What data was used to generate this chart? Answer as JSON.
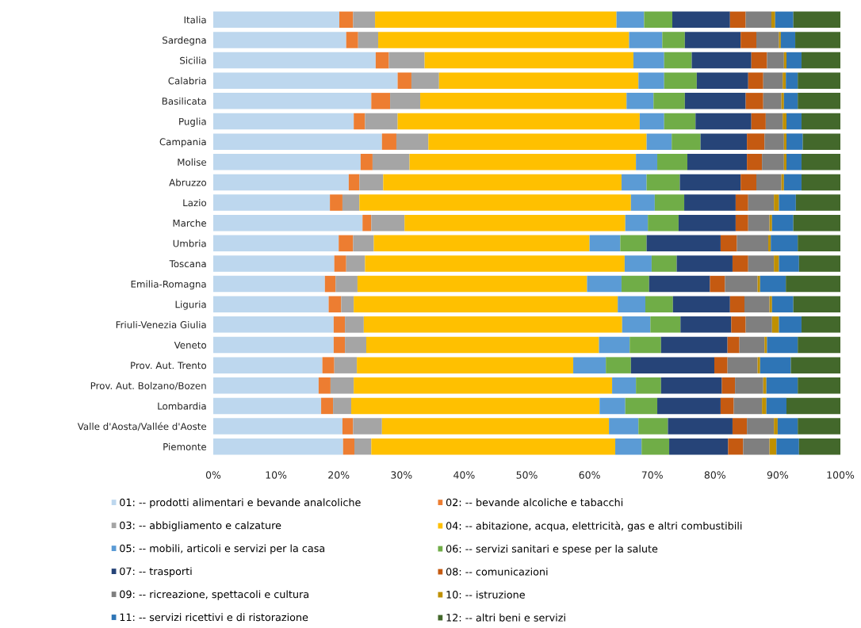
{
  "chart_data": {
    "type": "bar",
    "orientation": "horizontal",
    "stacked": true,
    "categories": [
      "Italia",
      "Sardegna",
      "Sicilia",
      "Calabria",
      "Basilicata",
      "Puglia",
      "Campania",
      "Molise",
      "Abruzzo",
      "Lazio",
      "Marche",
      "Umbria",
      "Toscana",
      "Emilia-Romagna",
      "Liguria",
      "Friuli-Venezia Giulia",
      "Veneto",
      "Prov. Aut. Trento",
      "Prov. Aut. Bolzano/Bozen",
      "Lombardia",
      "Valle d'Aosta/Vallée d'Aoste",
      "Piemonte"
    ],
    "series": [
      {
        "name": "01: -- prodotti alimentari e bevande analcoliche",
        "color": "#bdd7ee",
        "values": [
          20.1,
          21.2,
          25.9,
          29.4,
          25.2,
          22.4,
          26.9,
          23.5,
          21.6,
          18.6,
          23.8,
          20.0,
          19.3,
          17.8,
          18.4,
          19.2,
          19.2,
          17.4,
          16.8,
          17.2,
          20.6,
          20.7
        ]
      },
      {
        "name": "02: -- bevande alcoliche e tabacchi",
        "color": "#ed7d31",
        "values": [
          2.2,
          1.9,
          2.1,
          2.2,
          3.0,
          1.8,
          2.3,
          1.9,
          1.7,
          2.0,
          1.4,
          2.3,
          1.9,
          1.7,
          2.0,
          1.8,
          1.8,
          1.9,
          1.9,
          1.9,
          1.7,
          1.8
        ]
      },
      {
        "name": "03: -- abbigliamento e calzature",
        "color": "#a5a5a5",
        "values": [
          3.5,
          3.2,
          5.7,
          4.4,
          4.8,
          5.2,
          5.1,
          5.9,
          3.8,
          2.7,
          5.3,
          3.3,
          3.0,
          3.5,
          2.0,
          3.0,
          3.4,
          3.6,
          3.7,
          2.9,
          4.6,
          2.7
        ]
      },
      {
        "name": "04: -- abitazione, acqua, elettricità, gas e altri combustibili",
        "color": "#ffc000",
        "values": [
          38.5,
          40.0,
          33.3,
          31.8,
          32.9,
          38.6,
          34.8,
          36.1,
          38.0,
          43.3,
          35.2,
          34.4,
          41.4,
          36.6,
          42.1,
          41.2,
          37.1,
          34.5,
          41.2,
          39.6,
          36.2,
          38.9
        ]
      },
      {
        "name": "05: -- mobili, articoli e servizi per la casa",
        "color": "#5b9bd5",
        "values": [
          4.4,
          5.3,
          4.9,
          4.1,
          4.3,
          3.9,
          4.0,
          3.4,
          4.0,
          3.8,
          3.6,
          4.9,
          4.3,
          5.5,
          4.4,
          4.5,
          4.9,
          5.2,
          3.8,
          4.1,
          4.7,
          4.2
        ]
      },
      {
        "name": "06: -- servizi sanitari e spese per la salute",
        "color": "#70ad47",
        "values": [
          4.5,
          3.6,
          4.4,
          5.2,
          5.0,
          5.0,
          4.6,
          4.8,
          5.3,
          4.7,
          4.9,
          4.2,
          4.0,
          4.4,
          4.4,
          4.8,
          5.0,
          4.0,
          4.0,
          5.1,
          4.7,
          4.4
        ]
      },
      {
        "name": "07: -- trasporti",
        "color": "#264478",
        "values": [
          9.2,
          8.9,
          9.5,
          8.2,
          9.7,
          8.9,
          7.4,
          9.5,
          9.7,
          8.2,
          9.1,
          11.8,
          8.9,
          9.7,
          9.1,
          8.1,
          10.6,
          13.3,
          9.7,
          10.1,
          10.3,
          9.4
        ]
      },
      {
        "name": "08: -- comunicazioni",
        "color": "#c55a11",
        "values": [
          2.5,
          2.5,
          2.5,
          2.4,
          2.8,
          2.3,
          2.8,
          2.4,
          2.5,
          2.0,
          2.0,
          2.6,
          2.5,
          2.4,
          2.3,
          2.3,
          1.9,
          2.1,
          2.1,
          2.1,
          2.3,
          2.4
        ]
      },
      {
        "name": "09: -- ricreazione, spettacoli e cultura",
        "color": "#7f7f7f",
        "values": [
          4.1,
          3.6,
          2.7,
          3.1,
          2.9,
          2.7,
          3.1,
          3.5,
          4.0,
          4.1,
          3.4,
          5.0,
          4.1,
          5.2,
          4.0,
          4.2,
          4.0,
          4.8,
          4.5,
          4.5,
          4.3,
          4.2
        ]
      },
      {
        "name": "10: -- istruzione",
        "color": "#bf9000",
        "values": [
          0.6,
          0.3,
          0.4,
          0.5,
          0.4,
          0.6,
          0.4,
          0.4,
          0.4,
          0.8,
          0.4,
          0.4,
          0.8,
          0.4,
          0.4,
          1.1,
          0.4,
          0.4,
          0.5,
          0.7,
          0.6,
          1.1
        ]
      },
      {
        "name": "11: -- servizi ricettivi e di ristorazione",
        "color": "#2e75b6",
        "values": [
          2.9,
          2.3,
          2.4,
          1.9,
          2.2,
          2.4,
          2.6,
          2.4,
          2.8,
          2.7,
          3.4,
          4.3,
          3.2,
          4.1,
          3.4,
          3.6,
          4.9,
          4.9,
          5.0,
          3.2,
          3.2,
          3.6
        ]
      },
      {
        "name": "12: -- altri beni e servizi",
        "color": "#43682b",
        "values": [
          7.5,
          7.2,
          6.2,
          6.8,
          6.8,
          6.2,
          6.0,
          6.2,
          6.2,
          7.1,
          7.5,
          6.8,
          6.6,
          8.7,
          7.5,
          6.2,
          6.8,
          7.9,
          6.8,
          8.6,
          6.8,
          6.6
        ]
      }
    ],
    "xlim": [
      0,
      100
    ],
    "xticks": [
      {
        "value": 0,
        "label": "0%"
      },
      {
        "value": 10,
        "label": "10%"
      },
      {
        "value": 20,
        "label": "20%"
      },
      {
        "value": 30,
        "label": "30%"
      },
      {
        "value": 40,
        "label": "40%"
      },
      {
        "value": 50,
        "label": "50%"
      },
      {
        "value": 60,
        "label": "60%"
      },
      {
        "value": 70,
        "label": "70%"
      },
      {
        "value": 80,
        "label": "80%"
      },
      {
        "value": 90,
        "label": "90%"
      },
      {
        "value": 100,
        "label": "100%"
      }
    ],
    "legend": "bottom"
  }
}
